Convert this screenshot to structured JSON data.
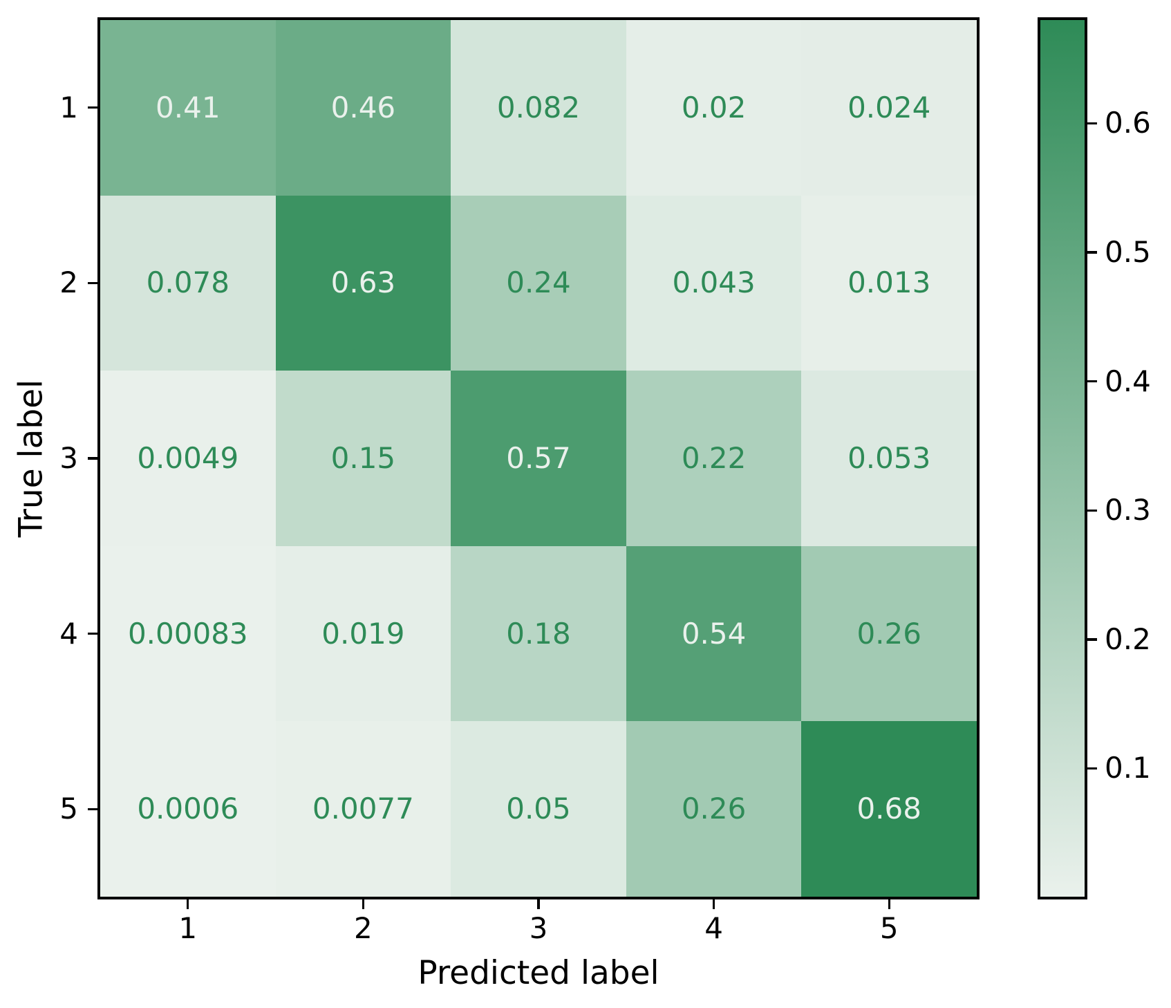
{
  "figure": {
    "background_color": "#ffffff",
    "spine_color": "#000000"
  },
  "chart_data": {
    "type": "heatmap",
    "title": "",
    "xlabel": "Predicted label",
    "ylabel": "True label",
    "x_tick_labels": [
      "1",
      "2",
      "3",
      "4",
      "5"
    ],
    "y_tick_labels": [
      "1",
      "2",
      "3",
      "4",
      "5"
    ],
    "matrix": [
      [
        0.41,
        0.46,
        0.082,
        0.02,
        0.024
      ],
      [
        0.078,
        0.63,
        0.24,
        0.043,
        0.013
      ],
      [
        0.0049,
        0.15,
        0.57,
        0.22,
        0.053
      ],
      [
        0.00083,
        0.019,
        0.18,
        0.54,
        0.26
      ],
      [
        0.0006,
        0.0077,
        0.05,
        0.26,
        0.68
      ]
    ],
    "cell_labels": [
      [
        "0.41",
        "0.46",
        "0.082",
        "0.02",
        "0.024"
      ],
      [
        "0.078",
        "0.63",
        "0.24",
        "0.043",
        "0.013"
      ],
      [
        "0.0049",
        "0.15",
        "0.57",
        "0.22",
        "0.053"
      ],
      [
        "0.00083",
        "0.019",
        "0.18",
        "0.54",
        "0.26"
      ],
      [
        "0.0006",
        "0.0077",
        "0.05",
        "0.26",
        "0.68"
      ]
    ],
    "vmin": 0.0006,
    "vmax": 0.68,
    "colormap": {
      "name": "light-seagreen",
      "start": "#eaf1ec",
      "end": "#2e8b57"
    },
    "cell_text_color_on_dark": "#eaf1ec",
    "cell_text_color_on_light": "#2e8b57",
    "colorbar": {
      "ticks": [
        {
          "label": "0.6",
          "value": 0.6
        },
        {
          "label": "0.5",
          "value": 0.5
        },
        {
          "label": "0.4",
          "value": 0.4
        },
        {
          "label": "0.3",
          "value": 0.3
        },
        {
          "label": "0.2",
          "value": 0.2
        },
        {
          "label": "0.1",
          "value": 0.1
        }
      ],
      "orientation": "vertical",
      "position": "right"
    },
    "grid": false,
    "legend": false
  }
}
